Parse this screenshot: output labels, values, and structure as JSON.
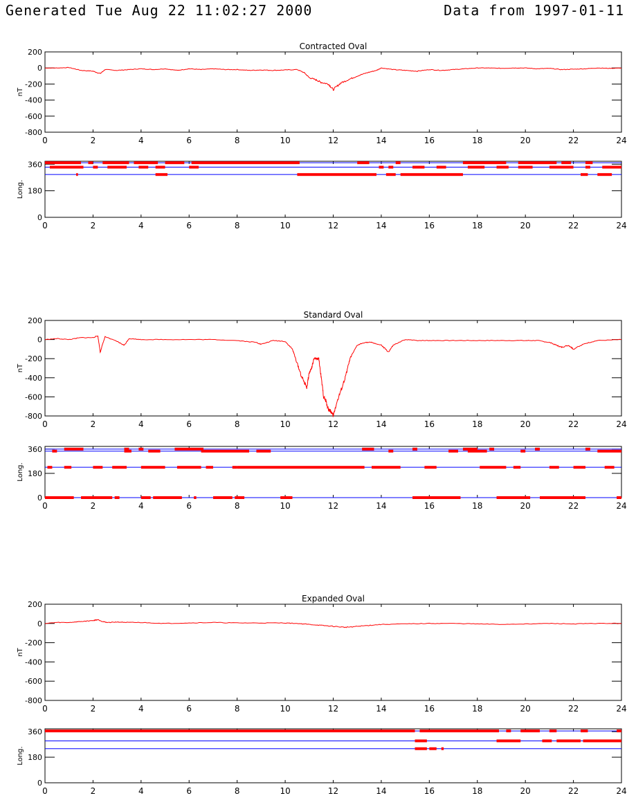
{
  "header": {
    "generated": "Generated Tue Aug 22 11:02:27 2000",
    "data_from": "Data from 1997-01-11"
  },
  "colors": {
    "trace": "#ff0000",
    "reference_lines": "#0000ff",
    "axes": "#000000"
  },
  "chart_data": [
    {
      "type": "line",
      "title": "Contracted Oval",
      "xlabel": "",
      "ylabel": "nT",
      "xlim": [
        0,
        24
      ],
      "ylim": [
        -800,
        200
      ],
      "xticks": [
        0,
        2,
        4,
        6,
        8,
        10,
        12,
        14,
        16,
        18,
        20,
        22,
        24
      ],
      "yticks": [
        200,
        0,
        -200,
        -400,
        -600,
        -800
      ],
      "series": [
        {
          "x": [
            0,
            0.5,
            1,
            1.5,
            2,
            2.3,
            2.5,
            3,
            3.5,
            4,
            4.5,
            5,
            5.5,
            6,
            6.5,
            7,
            7.5,
            8,
            8.5,
            9,
            9.5,
            10,
            10.5,
            10.8,
            11,
            11.3,
            11.5,
            11.8,
            12,
            12.3,
            12.6,
            13,
            13.4,
            13.8,
            14,
            14.5,
            15,
            15.5,
            16,
            16.5,
            17,
            17.5,
            18,
            18.5,
            19,
            19.5,
            20,
            20.5,
            21,
            21.5,
            22,
            22.5,
            23,
            23.5,
            24
          ],
          "y": [
            0,
            0,
            5,
            -30,
            -40,
            -70,
            -20,
            -30,
            -20,
            -10,
            -20,
            -10,
            -30,
            -10,
            -20,
            -10,
            -20,
            -20,
            -30,
            -25,
            -30,
            -25,
            -20,
            -60,
            -120,
            -150,
            -180,
            -200,
            -270,
            -190,
            -150,
            -100,
            -60,
            -30,
            0,
            -20,
            -30,
            -40,
            -20,
            -30,
            -20,
            -10,
            0,
            0,
            -5,
            0,
            0,
            -10,
            -5,
            -20,
            -15,
            -10,
            0,
            -5,
            0
          ]
        }
      ]
    },
    {
      "type": "scatter",
      "title": "",
      "xlabel": "",
      "ylabel": "Long.",
      "xlim": [
        0,
        24
      ],
      "ylim": [
        0,
        380
      ],
      "xticks": [
        0,
        2,
        4,
        6,
        8,
        10,
        12,
        14,
        16,
        18,
        20,
        22,
        24
      ],
      "yticks": [
        360,
        180,
        0
      ],
      "reference_lines": [
        370,
        340,
        290
      ],
      "bands": [
        {
          "y": 370,
          "x": [
            [
              0,
              1.5
            ],
            [
              1.8,
              2.0
            ],
            [
              2.4,
              3.5
            ],
            [
              3.7,
              4.7
            ],
            [
              5.0,
              5.8
            ],
            [
              6.1,
              10.6
            ],
            [
              13.0,
              13.5
            ],
            [
              14.6,
              14.8
            ],
            [
              17.4,
              19.2
            ],
            [
              19.7,
              21.3
            ],
            [
              21.5,
              21.9
            ],
            [
              22.5,
              22.8
            ]
          ]
        },
        {
          "y": 340,
          "x": [
            [
              0.2,
              1.6
            ],
            [
              2.0,
              2.2
            ],
            [
              2.6,
              3.4
            ],
            [
              3.9,
              4.3
            ],
            [
              4.6,
              5.0
            ],
            [
              6.0,
              6.4
            ],
            [
              13.9,
              14.1
            ],
            [
              14.3,
              14.5
            ],
            [
              15.3,
              15.8
            ],
            [
              16.3,
              16.7
            ],
            [
              17.6,
              18.3
            ],
            [
              18.8,
              19.3
            ],
            [
              19.7,
              20.3
            ],
            [
              21.0,
              22.0
            ],
            [
              22.5,
              22.7
            ],
            [
              23.2,
              24.0
            ]
          ]
        },
        {
          "y": 290,
          "x": [
            [
              1.3,
              1.35
            ],
            [
              4.6,
              5.1
            ],
            [
              10.5,
              13.8
            ],
            [
              14.2,
              14.6
            ],
            [
              14.8,
              17.4
            ],
            [
              22.3,
              22.6
            ],
            [
              23.0,
              23.6
            ]
          ]
        }
      ]
    },
    {
      "type": "line",
      "title": "Standard Oval",
      "xlabel": "",
      "ylabel": "nT",
      "xlim": [
        0,
        24
      ],
      "ylim": [
        -800,
        200
      ],
      "xticks": [
        0,
        2,
        4,
        6,
        8,
        10,
        12,
        14,
        16,
        18,
        20,
        22,
        24
      ],
      "yticks": [
        200,
        0,
        -200,
        -400,
        -600,
        -800
      ],
      "series": [
        {
          "x": [
            0,
            0.5,
            1,
            1.5,
            2,
            2.2,
            2.3,
            2.5,
            3,
            3.3,
            3.5,
            4,
            5,
            6,
            7,
            8,
            8.8,
            9,
            9.5,
            10,
            10.3,
            10.5,
            10.7,
            10.9,
            11,
            11.1,
            11.2,
            11.4,
            11.5,
            11.6,
            11.7,
            11.8,
            11.9,
            12,
            12.1,
            12.3,
            12.5,
            12.7,
            13,
            13.3,
            13.6,
            14,
            14.3,
            14.5,
            15,
            15.5,
            16,
            17,
            18,
            19,
            20,
            20.5,
            21,
            21.3,
            21.5,
            21.8,
            22,
            22.5,
            23,
            24
          ],
          "y": [
            0,
            10,
            0,
            20,
            20,
            40,
            -130,
            30,
            -20,
            -60,
            10,
            0,
            0,
            0,
            0,
            -10,
            -30,
            -50,
            -10,
            -20,
            -100,
            -250,
            -400,
            -500,
            -350,
            -300,
            -200,
            -200,
            -400,
            -600,
            -650,
            -730,
            -750,
            -800,
            -700,
            -550,
            -400,
            -200,
            -60,
            -30,
            -30,
            -60,
            -130,
            -60,
            0,
            -10,
            -10,
            -10,
            -10,
            -10,
            -10,
            -10,
            -30,
            -60,
            -80,
            -60,
            -100,
            -40,
            -10,
            0
          ]
        }
      ]
    },
    {
      "type": "scatter",
      "title": "",
      "xlabel": "",
      "ylabel": "Long.",
      "xlim": [
        0,
        24
      ],
      "ylim": [
        0,
        380
      ],
      "xticks": [
        0,
        2,
        4,
        6,
        8,
        10,
        12,
        14,
        16,
        18,
        20,
        22,
        24
      ],
      "yticks": [
        360,
        180,
        0
      ],
      "reference_lines": [
        360,
        345,
        225,
        0
      ],
      "bands": [
        {
          "y": 360,
          "x": [
            [
              0.8,
              1.6
            ],
            [
              3.3,
              3.5
            ],
            [
              3.9,
              4.1
            ],
            [
              5.4,
              6.6
            ],
            [
              13.2,
              13.7
            ],
            [
              15.3,
              15.5
            ],
            [
              17.4,
              18.0
            ],
            [
              18.5,
              18.7
            ],
            [
              20.4,
              20.6
            ],
            [
              22.5,
              22.7
            ]
          ]
        },
        {
          "y": 345,
          "x": [
            [
              0.3,
              0.5
            ],
            [
              3.3,
              3.6
            ],
            [
              4.3,
              4.8
            ],
            [
              6.5,
              8.5
            ],
            [
              8.8,
              9.4
            ],
            [
              14.3,
              14.5
            ],
            [
              16.8,
              17.2
            ],
            [
              17.6,
              18.4
            ],
            [
              19.8,
              20.0
            ],
            [
              23.0,
              24.0
            ]
          ]
        },
        {
          "y": 225,
          "x": [
            [
              0.1,
              0.3
            ],
            [
              0.8,
              1.1
            ],
            [
              2.0,
              2.4
            ],
            [
              2.8,
              3.4
            ],
            [
              4.0,
              5.0
            ],
            [
              5.5,
              6.5
            ],
            [
              6.7,
              7.0
            ],
            [
              7.8,
              8.0
            ],
            [
              8.0,
              13.3
            ],
            [
              13.6,
              14.8
            ],
            [
              15.8,
              16.3
            ],
            [
              18.1,
              19.2
            ],
            [
              19.5,
              19.8
            ],
            [
              21.0,
              21.4
            ],
            [
              22.0,
              22.5
            ],
            [
              23.3,
              23.7
            ]
          ]
        },
        {
          "y": 0,
          "x": [
            [
              0,
              1.2
            ],
            [
              1.5,
              2.8
            ],
            [
              2.9,
              3.1
            ],
            [
              4.0,
              4.4
            ],
            [
              4.5,
              5.7
            ],
            [
              6.2,
              6.3
            ],
            [
              7.0,
              7.8
            ],
            [
              7.9,
              8.3
            ],
            [
              9.8,
              10.3
            ],
            [
              15.3,
              17.3
            ],
            [
              18.8,
              20.2
            ],
            [
              20.6,
              22.5
            ],
            [
              23.8,
              24.0
            ]
          ]
        }
      ]
    },
    {
      "type": "line",
      "title": "Expanded Oval",
      "xlabel": "",
      "ylabel": "nT",
      "xlim": [
        0,
        24
      ],
      "ylim": [
        -800,
        200
      ],
      "xticks": [
        0,
        2,
        4,
        6,
        8,
        10,
        12,
        14,
        16,
        18,
        20,
        22,
        24
      ],
      "yticks": [
        200,
        0,
        -200,
        -400,
        -600,
        -800
      ],
      "series": [
        {
          "x": [
            0,
            0.5,
            1,
            1.5,
            2,
            2.2,
            2.4,
            2.6,
            3,
            3.5,
            4,
            5,
            6,
            7,
            8,
            9,
            10,
            10.5,
            11,
            11.5,
            12,
            12.5,
            13,
            13.5,
            14,
            15,
            16,
            17,
            18,
            19,
            20,
            21,
            22,
            23,
            24
          ],
          "y": [
            0,
            10,
            10,
            20,
            30,
            40,
            20,
            10,
            15,
            10,
            10,
            0,
            5,
            10,
            5,
            5,
            5,
            0,
            -10,
            -20,
            -30,
            -40,
            -30,
            -20,
            -10,
            -5,
            0,
            0,
            -5,
            -10,
            -5,
            0,
            -5,
            0,
            0
          ]
        }
      ]
    },
    {
      "type": "scatter",
      "title": "",
      "xlabel": "",
      "ylabel": "Long.",
      "xlim": [
        0,
        24
      ],
      "ylim": [
        0,
        380
      ],
      "xticks": [
        0,
        2,
        4,
        6,
        8,
        10,
        12,
        14,
        16,
        18,
        20,
        22,
        24
      ],
      "yticks": [
        360,
        180,
        0
      ],
      "reference_lines": [
        365,
        295,
        240
      ],
      "bands": [
        {
          "y": 365,
          "x": [
            [
              0,
              15.4
            ],
            [
              15.6,
              18.9
            ],
            [
              19.2,
              19.4
            ],
            [
              19.8,
              20.6
            ],
            [
              21.0,
              21.3
            ],
            [
              22.3,
              22.6
            ],
            [
              23.8,
              24.0
            ]
          ]
        },
        {
          "y": 295,
          "x": [
            [
              15.4,
              15.9
            ],
            [
              18.8,
              19.8
            ],
            [
              20.7,
              21.1
            ],
            [
              21.3,
              22.3
            ],
            [
              22.4,
              24.0
            ]
          ]
        },
        {
          "y": 240,
          "x": [
            [
              15.4,
              15.9
            ],
            [
              16.0,
              16.3
            ],
            [
              16.5,
              16.6
            ]
          ]
        }
      ]
    }
  ]
}
